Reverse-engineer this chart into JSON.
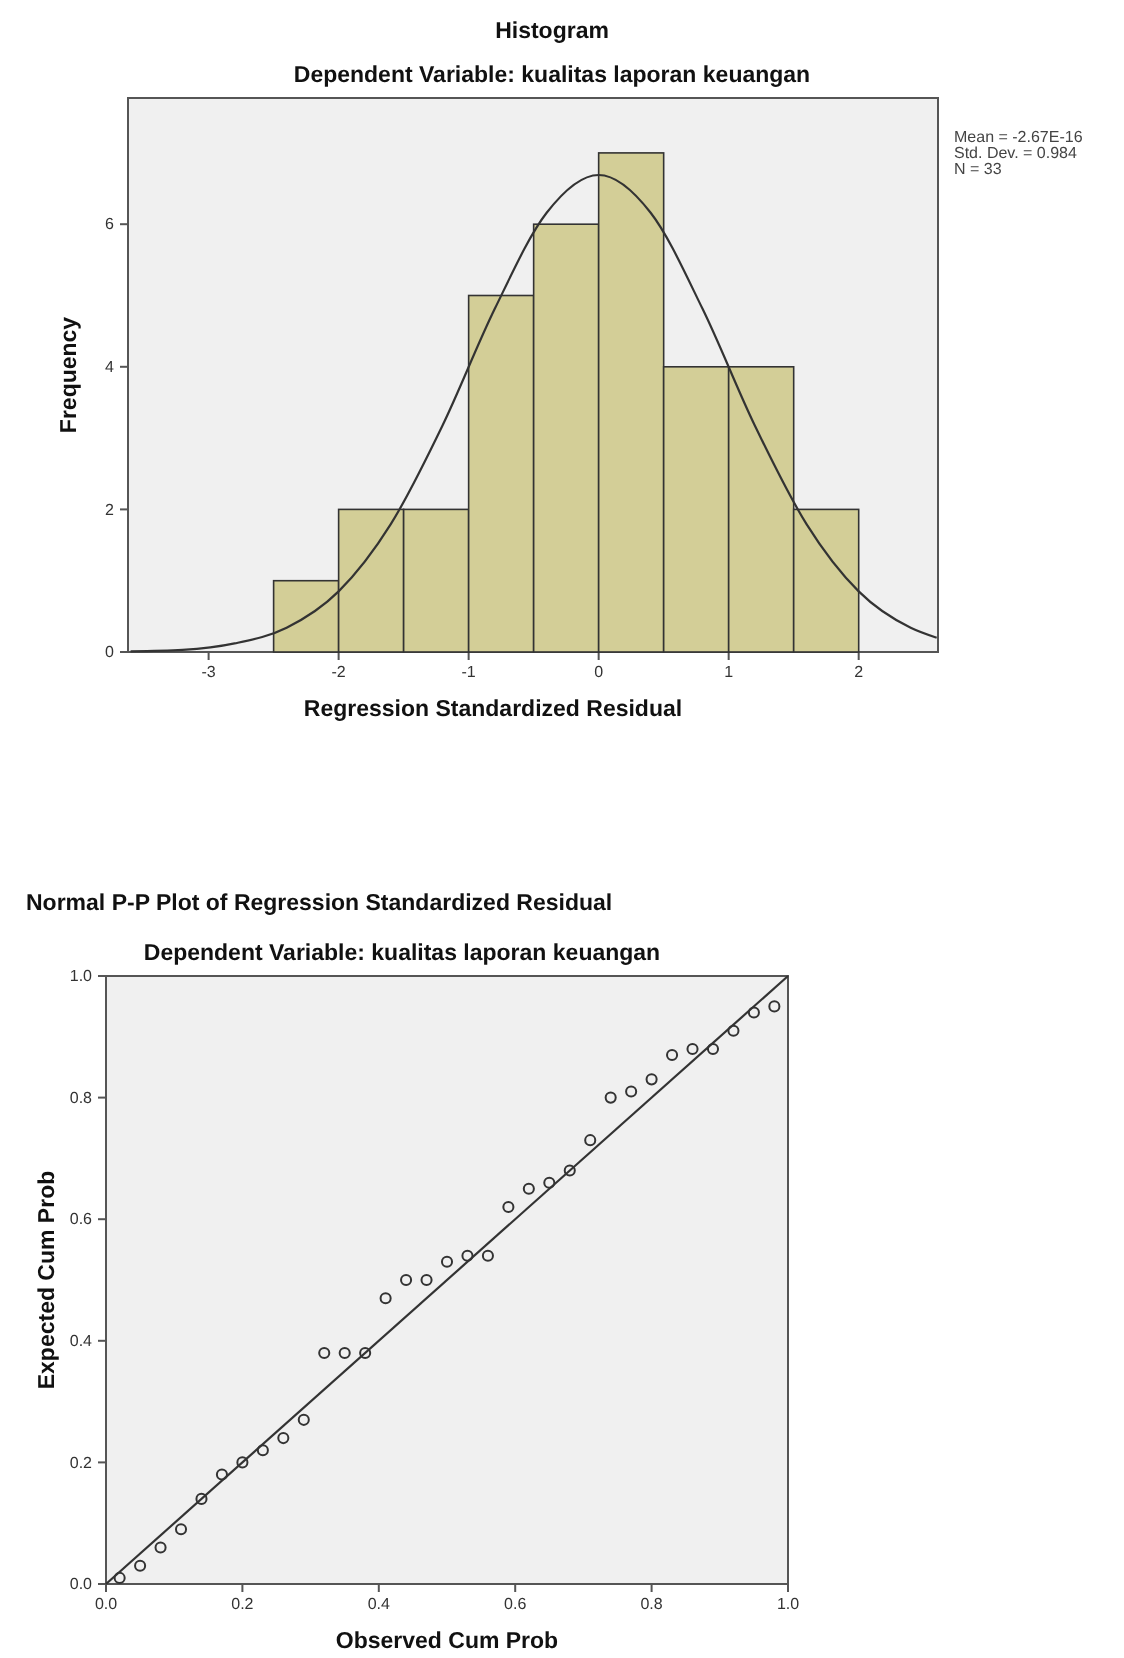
{
  "chart_data": [
    {
      "type": "histogram",
      "title": "Histogram",
      "subtitle": "Dependent Variable: kualitas laporan keuangan",
      "xlabel": "Regression Standardized Residual",
      "ylabel": "Frequency",
      "bins": [
        -2.5,
        -2,
        -1.5,
        -1,
        -0.5,
        0,
        0.5,
        1,
        1.5,
        2
      ],
      "values": [
        1,
        2,
        2,
        5,
        6,
        7,
        4,
        4,
        2
      ],
      "color": "#d3ce97",
      "series": [
        {
          "type": "line",
          "color": "#333333",
          "x": [
            -3.6,
            -3.2,
            -2.8,
            -2.4,
            -2.0,
            -1.6,
            -1.2,
            -0.8,
            -0.4,
            0,
            0.4,
            0.8,
            1.2,
            1.6,
            2.0,
            2.4,
            2.6
          ],
          "values": [
            0.01,
            0.03,
            0.12,
            0.34,
            0.85,
            1.79,
            3.18,
            4.81,
            6.16,
            6.69,
            6.16,
            4.81,
            3.18,
            1.79,
            0.85,
            0.34,
            0.2
          ]
        }
      ],
      "xlim": [
        -3.62,
        2.61
      ],
      "ylim": [
        0,
        7.77
      ],
      "xticks": [
        -3,
        -2,
        -1,
        0,
        1,
        2
      ],
      "yticks": [
        0,
        2,
        4,
        6
      ],
      "grid": false,
      "annotations": [
        "Mean = -2.67E-16",
        "Std. Dev. = 0.984",
        "N = 33"
      ]
    },
    {
      "type": "scatter",
      "title": "Normal P-P Plot of Regression Standardized Residual",
      "subtitle": "Dependent Variable: kualitas laporan keuangan",
      "xlabel": "Observed Cum Prob",
      "ylabel": "Expected Cum Prob",
      "series": [
        {
          "color": "#333333",
          "x": [
            0.02,
            0.05,
            0.08,
            0.11,
            0.14,
            0.17,
            0.2,
            0.23,
            0.26,
            0.29,
            0.32,
            0.35,
            0.38,
            0.41,
            0.44,
            0.47,
            0.5,
            0.53,
            0.56,
            0.59,
            0.62,
            0.65,
            0.68,
            0.71,
            0.74,
            0.77,
            0.8,
            0.83,
            0.86,
            0.89,
            0.92,
            0.95,
            0.98
          ],
          "values": [
            0.01,
            0.03,
            0.06,
            0.09,
            0.14,
            0.18,
            0.2,
            0.22,
            0.24,
            0.27,
            0.38,
            0.38,
            0.38,
            0.47,
            0.5,
            0.5,
            0.53,
            0.54,
            0.54,
            0.62,
            0.65,
            0.66,
            0.68,
            0.73,
            0.8,
            0.81,
            0.83,
            0.87,
            0.88,
            0.88,
            0.91,
            0.94,
            0.95
          ]
        },
        {
          "type": "line",
          "color": "#333333",
          "marker": "none",
          "x": [
            0,
            1
          ],
          "values": [
            0,
            1
          ]
        }
      ],
      "marker": "circle",
      "xlim": [
        0,
        1
      ],
      "ylim": [
        0,
        1
      ],
      "xticks": [
        {
          "value": 0,
          "label": "0.0"
        },
        {
          "value": 0.2,
          "label": "0.2"
        },
        {
          "value": 0.4,
          "label": "0.4"
        },
        {
          "value": 0.6,
          "label": "0.6"
        },
        {
          "value": 0.8,
          "label": "0.8"
        },
        {
          "value": 1,
          "label": "1.0"
        }
      ],
      "yticks": [
        {
          "value": 0,
          "label": "0.0"
        },
        {
          "value": 0.2,
          "label": "0.2"
        },
        {
          "value": 0.4,
          "label": "0.4"
        },
        {
          "value": 0.6,
          "label": "0.6"
        },
        {
          "value": 0.8,
          "label": "0.8"
        },
        {
          "value": 1,
          "label": "1.0"
        }
      ],
      "grid": false
    }
  ]
}
